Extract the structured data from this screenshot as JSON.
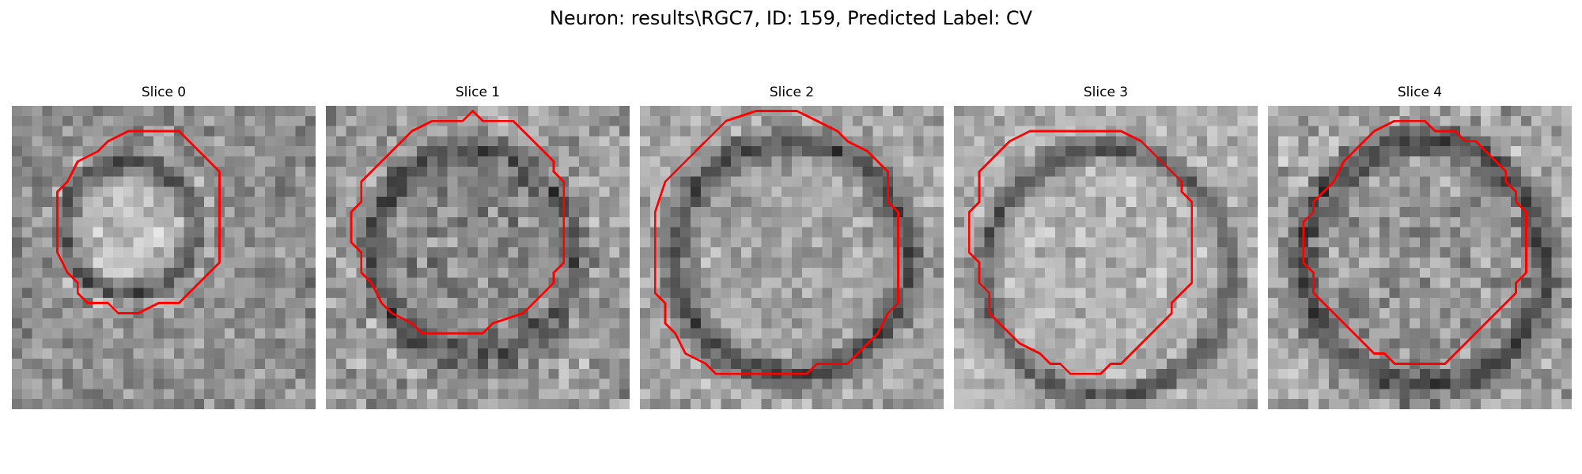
{
  "figure": {
    "title": "Neuron: results\\RGC7, ID: 159, Predicted Label: CV",
    "contour_color": "#ff0000"
  },
  "slices": [
    {
      "label": "Slice 0"
    },
    {
      "label": "Slice 1"
    },
    {
      "label": "Slice 2"
    },
    {
      "label": "Slice 3"
    },
    {
      "label": "Slice 4"
    }
  ]
}
